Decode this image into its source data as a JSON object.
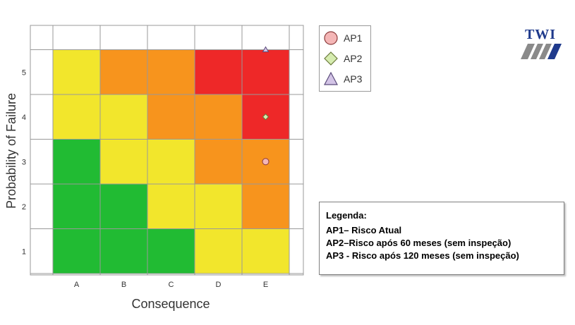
{
  "chart_data": {
    "type": "heatmap",
    "title": "",
    "xlabel": "Consequence",
    "ylabel": "Probability of Failure",
    "x_categories": [
      "A",
      "B",
      "C",
      "D",
      "E"
    ],
    "y_categories": [
      "1",
      "2",
      "3",
      "4",
      "5"
    ],
    "risk_levels": {
      "1": [
        "low",
        "low",
        "low",
        "medium",
        "medium"
      ],
      "2": [
        "low",
        "low",
        "medium",
        "medium",
        "medium-high"
      ],
      "3": [
        "low",
        "medium",
        "medium",
        "medium-high",
        "medium-high"
      ],
      "4": [
        "medium",
        "medium",
        "medium-high",
        "medium-high",
        "high"
      ],
      "5": [
        "medium",
        "medium-high",
        "medium-high",
        "high",
        "high"
      ]
    },
    "colors": {
      "low": "#21bb33",
      "medium": "#f2e62c",
      "medium-high": "#f7941d",
      "high": "#ee2828",
      "grid": "#999999",
      "background": "#ffffff"
    },
    "points": [
      {
        "series": "AP1",
        "x": "E",
        "y": 3.0
      },
      {
        "series": "AP2",
        "x": "E",
        "y": 4.0
      },
      {
        "series": "AP3",
        "x": "E",
        "y": 5.5
      }
    ],
    "legend": [
      {
        "name": "AP1",
        "marker": "circle",
        "fill": "#f4b6b6",
        "stroke": "#8b3a3a"
      },
      {
        "name": "AP2",
        "marker": "diamond",
        "fill": "#d6ecb0",
        "stroke": "#6a7a3a"
      },
      {
        "name": "AP3",
        "marker": "triangle",
        "fill": "#d3c4e6",
        "stroke": "#5a4a7a"
      }
    ],
    "legend_position": "top-right"
  },
  "logo": {
    "text": "TWI"
  },
  "note": {
    "title": "Legenda:",
    "lines": [
      "AP1– Risco Atual",
      "AP2–Risco após 60 meses (sem inspeção)",
      "AP3 - Risco após 120 meses (sem inspeção)"
    ]
  }
}
